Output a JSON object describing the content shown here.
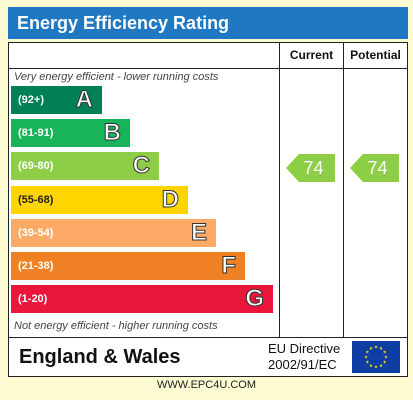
{
  "title": "Energy Efficiency Rating",
  "columns": {
    "current": "Current",
    "potential": "Potential"
  },
  "captions": {
    "top": "Very energy efficient - lower running costs",
    "bottom": "Not energy efficient - higher running costs"
  },
  "bands": [
    {
      "range": "(92+)",
      "letter": "A",
      "color": "#008054"
    },
    {
      "range": "(81-91)",
      "letter": "B",
      "color": "#19b459"
    },
    {
      "range": "(69-80)",
      "letter": "C",
      "color": "#8dce46"
    },
    {
      "range": "(55-68)",
      "letter": "D",
      "color": "#ffd500"
    },
    {
      "range": "(39-54)",
      "letter": "E",
      "color": "#fcaa65"
    },
    {
      "range": "(21-38)",
      "letter": "F",
      "color": "#ef8023"
    },
    {
      "range": "(1-20)",
      "letter": "G",
      "color": "#e9153b"
    }
  ],
  "ratings": {
    "current": "74",
    "potential": "74",
    "band": "C",
    "color": "#8dce46"
  },
  "footer": {
    "region": "England & Wales",
    "directive_line1": "EU Directive",
    "directive_line2": "2002/91/EC",
    "flag_color": "#0e3ea3",
    "star_color": "#ffdd00"
  },
  "website": "WWW.EPC4U.COM"
}
